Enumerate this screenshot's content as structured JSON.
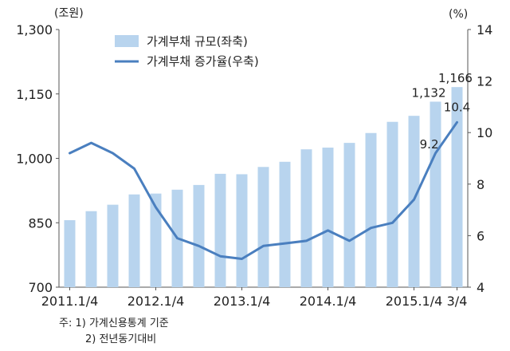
{
  "chart_data": {
    "type": "bar+line",
    "left_axis": {
      "unit": "(조원)",
      "min": 700,
      "max": 1300,
      "ticks": [
        700,
        850,
        1000,
        1150,
        1300
      ],
      "tick_labels": [
        "700",
        "850",
        "1,000",
        "1,150",
        "1,300"
      ]
    },
    "right_axis": {
      "unit": "(%)",
      "min": 4,
      "max": 14,
      "ticks": [
        4,
        6,
        8,
        10,
        12,
        14
      ],
      "tick_labels": [
        "4",
        "6",
        "8",
        "10",
        "12",
        "14"
      ]
    },
    "categories": [
      "2011.1/4",
      "2011.2/4",
      "2011.3/4",
      "2011.4/4",
      "2012.1/4",
      "2012.2/4",
      "2012.3/4",
      "2012.4/4",
      "2013.1/4",
      "2013.2/4",
      "2013.3/4",
      "2013.4/4",
      "2014.1/4",
      "2014.2/4",
      "2014.3/4",
      "2014.4/4",
      "2015.1/4",
      "2015.2/4",
      "2015.3/4"
    ],
    "x_tick_labels": [
      {
        "index": 0,
        "label": "2011.1/4"
      },
      {
        "index": 4,
        "label": "2012.1/4"
      },
      {
        "index": 8,
        "label": "2013.1/4"
      },
      {
        "index": 12,
        "label": "2014.1/4"
      },
      {
        "index": 16,
        "label": "2015.1/4"
      },
      {
        "index": 18,
        "label": "3/4"
      }
    ],
    "series": [
      {
        "name": "가계부채 규모(좌축)",
        "kind": "bar",
        "axis": "left",
        "color": "#b8d4ee",
        "values": [
          856,
          877,
          892,
          916,
          918,
          927,
          938,
          964,
          963,
          980,
          992,
          1021,
          1025,
          1036,
          1059,
          1085,
          1099,
          1132,
          1166
        ]
      },
      {
        "name": "가계부채 증가율(우축)",
        "kind": "line",
        "axis": "right",
        "color": "#4a7fbf",
        "values": [
          9.2,
          9.6,
          9.2,
          8.6,
          7.1,
          5.9,
          5.6,
          5.2,
          5.1,
          5.6,
          5.7,
          5.8,
          6.2,
          5.8,
          6.3,
          6.5,
          7.4,
          9.2,
          10.4
        ]
      }
    ],
    "data_labels": [
      {
        "series": 0,
        "index": 17,
        "text": "1,132"
      },
      {
        "series": 0,
        "index": 18,
        "text": "1,166"
      },
      {
        "series": 1,
        "index": 17,
        "text": "9.2"
      },
      {
        "series": 1,
        "index": 18,
        "text": "10.4"
      }
    ],
    "legend_position": "top"
  },
  "notes": {
    "line1": "주: 1) 가계신용통계 기준",
    "line2": "2) 전년동기대비"
  }
}
